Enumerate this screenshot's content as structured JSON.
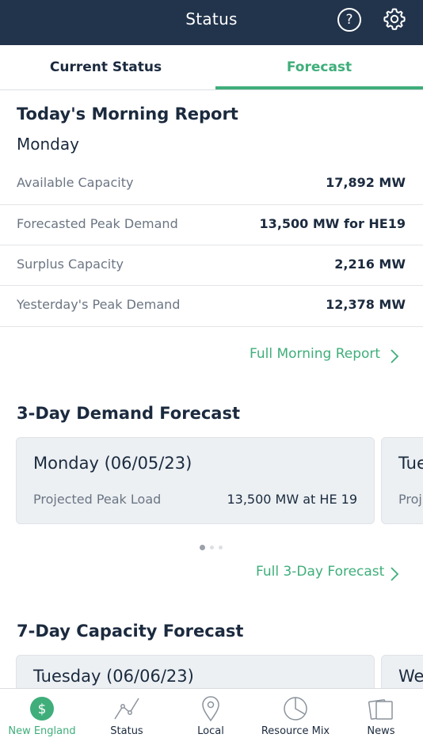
{
  "header": {
    "title": "Status",
    "help_glyph": "?"
  },
  "tabs": [
    {
      "label": "Current Status",
      "active": false
    },
    {
      "label": "Forecast",
      "active": true
    }
  ],
  "morning_report": {
    "title": "Today's Morning Report",
    "day": "Monday",
    "rows": [
      {
        "label": "Available Capacity",
        "value": "17,892 MW"
      },
      {
        "label": "Forecasted Peak Demand",
        "value": "13,500 MW for HE19"
      },
      {
        "label": "Surplus Capacity",
        "value": "2,216 MW"
      },
      {
        "label": "Yesterday's Peak Demand",
        "value": "12,378 MW"
      }
    ],
    "link": "Full Morning Report"
  },
  "demand_forecast": {
    "title": "3-Day Demand Forecast",
    "cards": [
      {
        "title": "Monday (06/05/23)",
        "label": "Projected Peak Load",
        "value": "13,500 MW at HE 19"
      },
      {
        "title": "Tue",
        "label": "Proj"
      }
    ],
    "link": "Full 3-Day Forecast"
  },
  "capacity_forecast": {
    "title": "7-Day Capacity Forecast",
    "cards": [
      {
        "title": "Tuesday (06/06/23)"
      },
      {
        "title": "We"
      }
    ]
  },
  "bottom_nav": [
    {
      "label": "New England",
      "icon": "dollar-icon",
      "active": true
    },
    {
      "label": "Status",
      "icon": "chart-line-icon",
      "active": false
    },
    {
      "label": "Local",
      "icon": "map-pin-icon",
      "active": false
    },
    {
      "label": "Resource Mix",
      "icon": "pie-chart-icon",
      "active": false
    },
    {
      "label": "News",
      "icon": "news-icon",
      "active": false
    }
  ],
  "colors": {
    "header_bg": "#22344c",
    "accent": "#3fae7a",
    "text": "#1b2a3e",
    "muted": "#6b7583"
  }
}
